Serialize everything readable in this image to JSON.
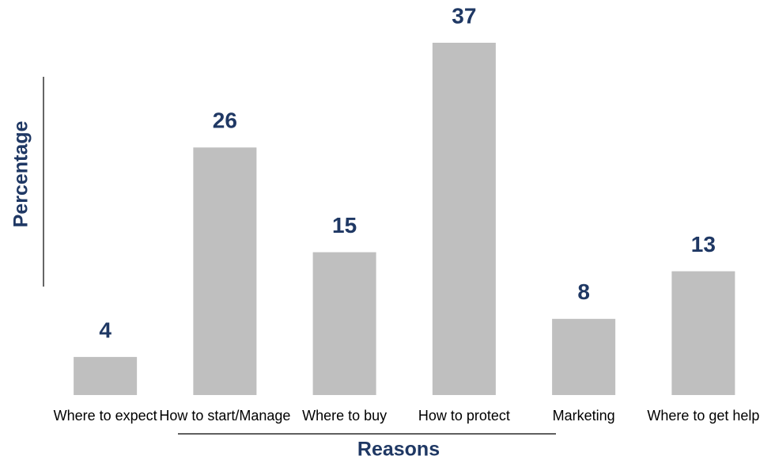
{
  "chart_data": {
    "type": "bar",
    "x_label": "Reasons",
    "y_label": "Percentage",
    "categories": [
      "Where to expect",
      "How to start/Manage",
      "Where to buy",
      "How to protect",
      "Marketing",
      "Where to get help"
    ],
    "values": [
      4,
      26,
      15,
      37,
      8,
      13
    ],
    "color": "#bfbfbf",
    "label_color": "#1f3864"
  }
}
